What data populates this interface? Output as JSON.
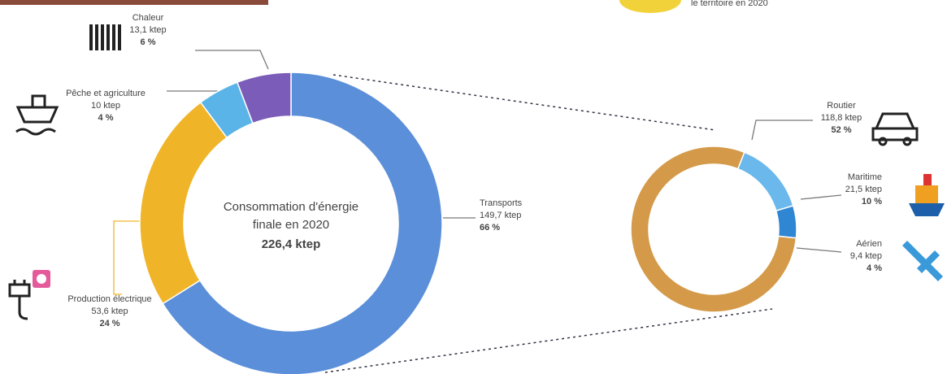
{
  "header_fragment": "le territoire en 2020",
  "chart_data": [
    {
      "type": "donut",
      "center_label": [
        "Consommation d'énergie",
        "finale en 2020"
      ],
      "total_label": "226,4 ktep",
      "categories": [
        "Transports",
        "Production électrique",
        "Pêche et agriculture",
        "Chaleur"
      ],
      "values": [
        149.7,
        53.6,
        10,
        13.1
      ],
      "value_labels": [
        "149,7 ktep",
        "53,6 ktep",
        "10 ktep",
        "13,1 ktep"
      ],
      "share_labels": [
        "66 %",
        "24 %",
        "4 %",
        "6 %"
      ],
      "colors": [
        "#5b8fd9",
        "#f0b429",
        "#5ab4e8",
        "#7b5cb8"
      ]
    },
    {
      "type": "donut",
      "categories": [
        "Maritime",
        "Aérien",
        "Routier"
      ],
      "values": [
        21.5,
        9.4,
        118.8
      ],
      "value_labels": [
        "21,5 ktep",
        "9,4 ktep",
        "118,8 ktep"
      ],
      "share_labels": [
        "10 %",
        "4 %",
        "52 %"
      ],
      "colors": [
        "#6bb8ec",
        "#2f86d2",
        "#d49a4a"
      ]
    }
  ]
}
